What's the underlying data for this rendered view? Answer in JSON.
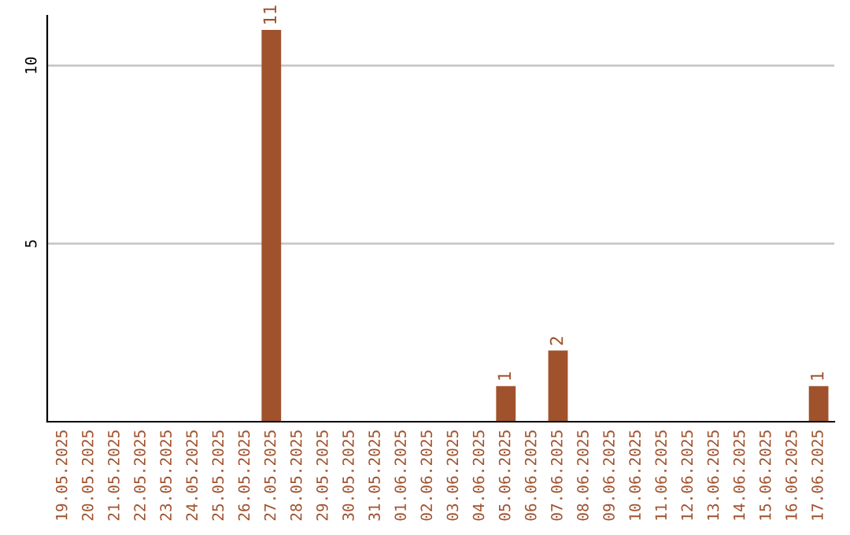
{
  "chart_data": {
    "type": "bar",
    "categories": [
      "19.05.2025",
      "20.05.2025",
      "21.05.2025",
      "22.05.2025",
      "23.05.2025",
      "24.05.2025",
      "25.05.2025",
      "26.05.2025",
      "27.05.2025",
      "28.05.2025",
      "29.05.2025",
      "30.05.2025",
      "31.05.2025",
      "01.06.2025",
      "02.06.2025",
      "03.06.2025",
      "04.06.2025",
      "05.06.2025",
      "06.06.2025",
      "07.06.2025",
      "08.06.2025",
      "09.06.2025",
      "10.06.2025",
      "11.06.2025",
      "12.06.2025",
      "13.06.2025",
      "14.06.2025",
      "15.06.2025",
      "16.06.2025",
      "17.06.2025"
    ],
    "values": [
      0,
      0,
      0,
      0,
      0,
      0,
      0,
      0,
      11,
      0,
      0,
      0,
      0,
      0,
      0,
      0,
      0,
      1,
      0,
      2,
      0,
      0,
      0,
      0,
      0,
      0,
      0,
      0,
      0,
      1
    ],
    "value_labels": [
      null,
      null,
      null,
      null,
      null,
      null,
      null,
      null,
      "11",
      null,
      null,
      null,
      null,
      null,
      null,
      null,
      null,
      "1",
      null,
      "2",
      null,
      null,
      null,
      null,
      null,
      null,
      null,
      null,
      null,
      "1"
    ],
    "color": "#a0522d",
    "ylim": [
      0,
      11.4
    ],
    "yticks": [
      5,
      10
    ],
    "grid": "y",
    "legend": false
  }
}
